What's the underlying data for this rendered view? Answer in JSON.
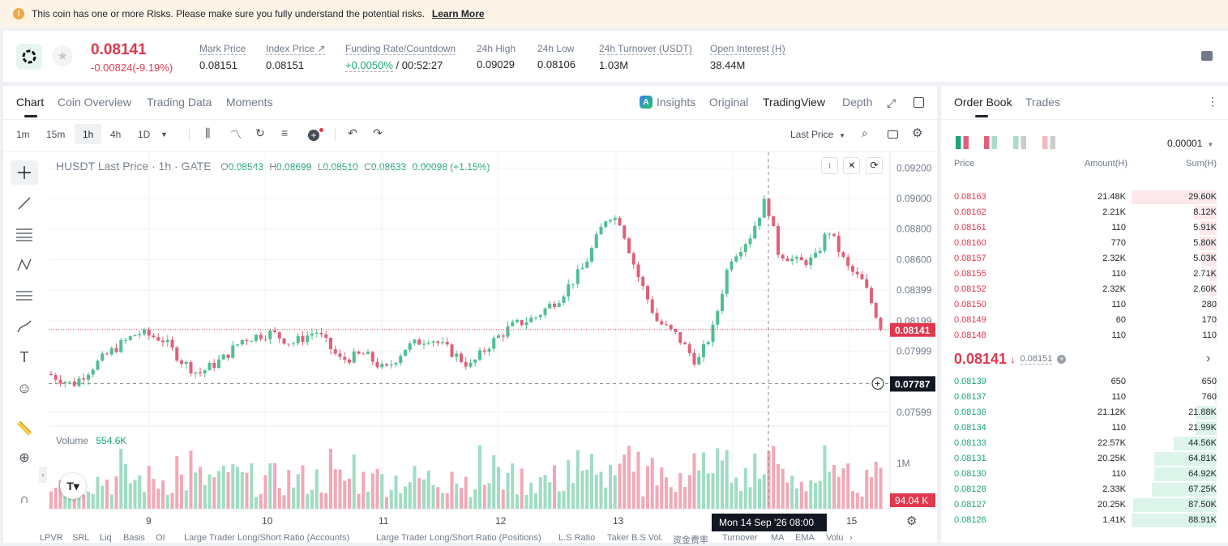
{
  "risk": {
    "text": "This coin has one or more Risks. Please make sure you fully understand the potential risks.",
    "link": "Learn More"
  },
  "ticker": {
    "price": "0.08141",
    "change": "-0.00824(-9.19%)"
  },
  "stats": [
    {
      "label": "Mark Price",
      "value": "0.08151"
    },
    {
      "label": "Index Price ↗",
      "value": "0.08151"
    },
    {
      "label": "Funding Rate/Countdown",
      "value_green": "+0.0050%",
      "value": "/ 00:52:27"
    },
    {
      "label": "24h High",
      "value": "0.09029"
    },
    {
      "label": "24h Low",
      "value": "0.08106"
    },
    {
      "label": "24h Turnover (USDT)",
      "value": "1.03M"
    },
    {
      "label": "Open Interest (H)",
      "value": "38.44M"
    }
  ],
  "chart_tabs": [
    "Chart",
    "Coin Overview",
    "Trading Data",
    "Moments"
  ],
  "view_tabs": [
    "Insights",
    "Original",
    "TradingView",
    "Depth"
  ],
  "intervals": [
    "1m",
    "15m",
    "1h",
    "4h",
    "1D"
  ],
  "last_price_select": "Last Price",
  "legend": {
    "title": "HUSDT Last Price · 1h · GATE",
    "o": "0.08543",
    "h": "0.08699",
    "l": "0.08510",
    "c": "0.08633",
    "chg": "0.00098 (+1.15%)",
    "o_lbl": "O",
    "h_lbl": "H",
    "l_lbl": "L",
    "c_lbl": "C"
  },
  "volume": {
    "label": "Volume",
    "value": "554.6K",
    "axis": "1M",
    "tag": "94.04 K"
  },
  "price_axis": [
    "0.09200",
    "0.09000",
    "0.08800",
    "0.08600",
    "0.08399",
    "0.08199",
    "0.07999",
    "0.07599"
  ],
  "price_tags": {
    "last": "0.08141",
    "cross": "0.07787"
  },
  "time_axis": [
    "9",
    "10",
    "11",
    "12",
    "13",
    "15"
  ],
  "crosshair_time": "Mon 14 Sep '26   08:00",
  "bottom_tabs": [
    "LPVR",
    "SRL",
    "Liq",
    "Basis",
    "OI",
    "Large Trader Long/Short Ratio (Accounts)",
    "Large Trader Long/Short Ratio (Positions)",
    "L.S Ratio",
    "Taker B.S Vol.",
    "资金费率",
    "Turnover",
    "MA",
    "EMA",
    "Volu"
  ],
  "order_book": {
    "tabs": [
      "Order Book",
      "Trades"
    ],
    "precision": "0.00001",
    "headers": [
      "Price",
      "Amount(H)",
      "Sum(H)"
    ],
    "asks": [
      {
        "p": "0.08163",
        "a": "21.48K",
        "s": "29.60K",
        "d": 1.0
      },
      {
        "p": "0.08162",
        "a": "2.21K",
        "s": "8.12K",
        "d": 0.27
      },
      {
        "p": "0.08161",
        "a": "110",
        "s": "5.91K",
        "d": 0.2
      },
      {
        "p": "0.08160",
        "a": "770",
        "s": "5.80K",
        "d": 0.2
      },
      {
        "p": "0.08157",
        "a": "2.32K",
        "s": "5.03K",
        "d": 0.17
      },
      {
        "p": "0.08155",
        "a": "110",
        "s": "2.71K",
        "d": 0.09
      },
      {
        "p": "0.08152",
        "a": "2.32K",
        "s": "2.60K",
        "d": 0.09
      },
      {
        "p": "0.08150",
        "a": "110",
        "s": "280",
        "d": 0.01
      },
      {
        "p": "0.08149",
        "a": "60",
        "s": "170",
        "d": 0.006
      },
      {
        "p": "0.08148",
        "a": "110",
        "s": "110",
        "d": 0.004
      }
    ],
    "mid": {
      "price": "0.08141",
      "mark": "0.08151"
    },
    "bids": [
      {
        "p": "0.08139",
        "a": "650",
        "s": "650",
        "d": 0.007
      },
      {
        "p": "0.08137",
        "a": "110",
        "s": "760",
        "d": 0.009
      },
      {
        "p": "0.08136",
        "a": "21.12K",
        "s": "21.88K",
        "d": 0.25
      },
      {
        "p": "0.08134",
        "a": "110",
        "s": "21.99K",
        "d": 0.25
      },
      {
        "p": "0.08133",
        "a": "22.57K",
        "s": "44.56K",
        "d": 0.5
      },
      {
        "p": "0.08131",
        "a": "20.25K",
        "s": "64.81K",
        "d": 0.73
      },
      {
        "p": "0.08130",
        "a": "110",
        "s": "64.92K",
        "d": 0.73
      },
      {
        "p": "0.08128",
        "a": "2.33K",
        "s": "67.25K",
        "d": 0.76
      },
      {
        "p": "0.08127",
        "a": "20.25K",
        "s": "87.50K",
        "d": 0.98
      },
      {
        "p": "0.08126",
        "a": "1.41K",
        "s": "88.91K",
        "d": 1.0
      }
    ]
  },
  "colors": {
    "up": "#4fbf92",
    "down": "#e0607a",
    "accent_red": "#e0384e",
    "accent_green": "#1da479"
  }
}
